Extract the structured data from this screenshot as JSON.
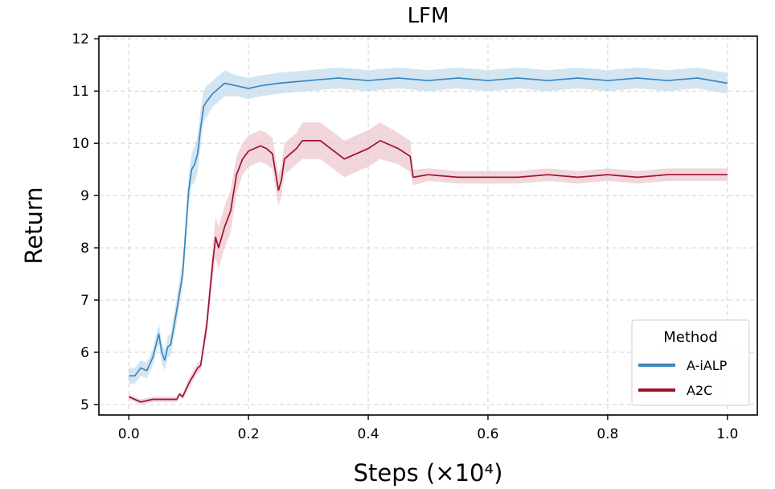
{
  "chart_data": {
    "type": "line",
    "title": "LFM",
    "xlabel": "Steps (×10⁴)",
    "ylabel": "Return",
    "xlim": [
      -0.05,
      1.05
    ],
    "ylim": [
      4.8,
      12.05
    ],
    "xticks": [
      0.0,
      0.2,
      0.4,
      0.6,
      0.8,
      1.0
    ],
    "xtick_labels": [
      "0.0",
      "0.2",
      "0.4",
      "0.6",
      "0.8",
      "1.0"
    ],
    "yticks": [
      5,
      6,
      7,
      8,
      9,
      10,
      11,
      12
    ],
    "ytick_labels": [
      "5",
      "6",
      "7",
      "8",
      "9",
      "10",
      "11",
      "12"
    ],
    "grid": true,
    "legend": {
      "title": "Method",
      "position": "lower-right"
    },
    "series": [
      {
        "name": "A-iALP",
        "color": "#3a87bd",
        "band_color": "#c5dcee",
        "x": [
          0.0,
          0.01,
          0.02,
          0.03,
          0.04,
          0.05,
          0.055,
          0.06,
          0.065,
          0.07,
          0.08,
          0.09,
          0.095,
          0.1,
          0.105,
          0.11,
          0.115,
          0.12,
          0.125,
          0.13,
          0.14,
          0.15,
          0.16,
          0.18,
          0.2,
          0.22,
          0.25,
          0.3,
          0.35,
          0.4,
          0.45,
          0.5,
          0.55,
          0.6,
          0.65,
          0.7,
          0.75,
          0.8,
          0.85,
          0.9,
          0.95,
          1.0
        ],
        "y": [
          5.55,
          5.55,
          5.7,
          5.65,
          5.9,
          6.35,
          6.0,
          5.85,
          6.1,
          6.15,
          6.8,
          7.5,
          8.3,
          9.1,
          9.5,
          9.6,
          9.8,
          10.3,
          10.7,
          10.8,
          10.95,
          11.05,
          11.15,
          11.1,
          11.05,
          11.1,
          11.15,
          11.2,
          11.25,
          11.2,
          11.25,
          11.2,
          11.25,
          11.2,
          11.25,
          11.2,
          11.25,
          11.2,
          11.25,
          11.2,
          11.25,
          11.15
        ],
        "band": [
          0.15,
          0.15,
          0.15,
          0.15,
          0.15,
          0.2,
          0.2,
          0.2,
          0.2,
          0.2,
          0.25,
          0.25,
          0.3,
          0.3,
          0.3,
          0.35,
          0.35,
          0.35,
          0.3,
          0.3,
          0.25,
          0.25,
          0.25,
          0.2,
          0.2,
          0.2,
          0.2,
          0.2,
          0.2,
          0.2,
          0.2,
          0.2,
          0.2,
          0.2,
          0.2,
          0.2,
          0.2,
          0.2,
          0.2,
          0.2,
          0.2,
          0.2
        ]
      },
      {
        "name": "A2C",
        "color": "#a0112d",
        "band_color": "#ecc8d0",
        "x": [
          0.0,
          0.02,
          0.04,
          0.06,
          0.08,
          0.085,
          0.09,
          0.1,
          0.11,
          0.115,
          0.12,
          0.13,
          0.14,
          0.145,
          0.15,
          0.16,
          0.17,
          0.18,
          0.19,
          0.2,
          0.22,
          0.23,
          0.24,
          0.25,
          0.255,
          0.26,
          0.28,
          0.29,
          0.3,
          0.32,
          0.36,
          0.4,
          0.42,
          0.45,
          0.47,
          0.475,
          0.5,
          0.55,
          0.6,
          0.65,
          0.7,
          0.75,
          0.8,
          0.85,
          0.9,
          0.95,
          1.0
        ],
        "y": [
          5.15,
          5.05,
          5.1,
          5.1,
          5.1,
          5.2,
          5.15,
          5.4,
          5.6,
          5.7,
          5.75,
          6.5,
          7.7,
          8.2,
          8.0,
          8.4,
          8.7,
          9.4,
          9.7,
          9.85,
          9.95,
          9.9,
          9.8,
          9.1,
          9.3,
          9.7,
          9.9,
          10.05,
          10.05,
          10.05,
          9.7,
          9.9,
          10.05,
          9.9,
          9.75,
          9.35,
          9.4,
          9.35,
          9.35,
          9.35,
          9.4,
          9.35,
          9.4,
          9.35,
          9.4,
          9.4,
          9.4
        ],
        "band": [
          0.05,
          0.05,
          0.05,
          0.05,
          0.05,
          0.05,
          0.05,
          0.1,
          0.1,
          0.1,
          0.1,
          0.2,
          0.3,
          0.4,
          0.4,
          0.4,
          0.4,
          0.35,
          0.3,
          0.3,
          0.3,
          0.3,
          0.3,
          0.3,
          0.3,
          0.3,
          0.3,
          0.35,
          0.35,
          0.35,
          0.35,
          0.35,
          0.35,
          0.3,
          0.3,
          0.15,
          0.12,
          0.12,
          0.12,
          0.12,
          0.12,
          0.12,
          0.12,
          0.12,
          0.12,
          0.12,
          0.12
        ]
      }
    ]
  }
}
